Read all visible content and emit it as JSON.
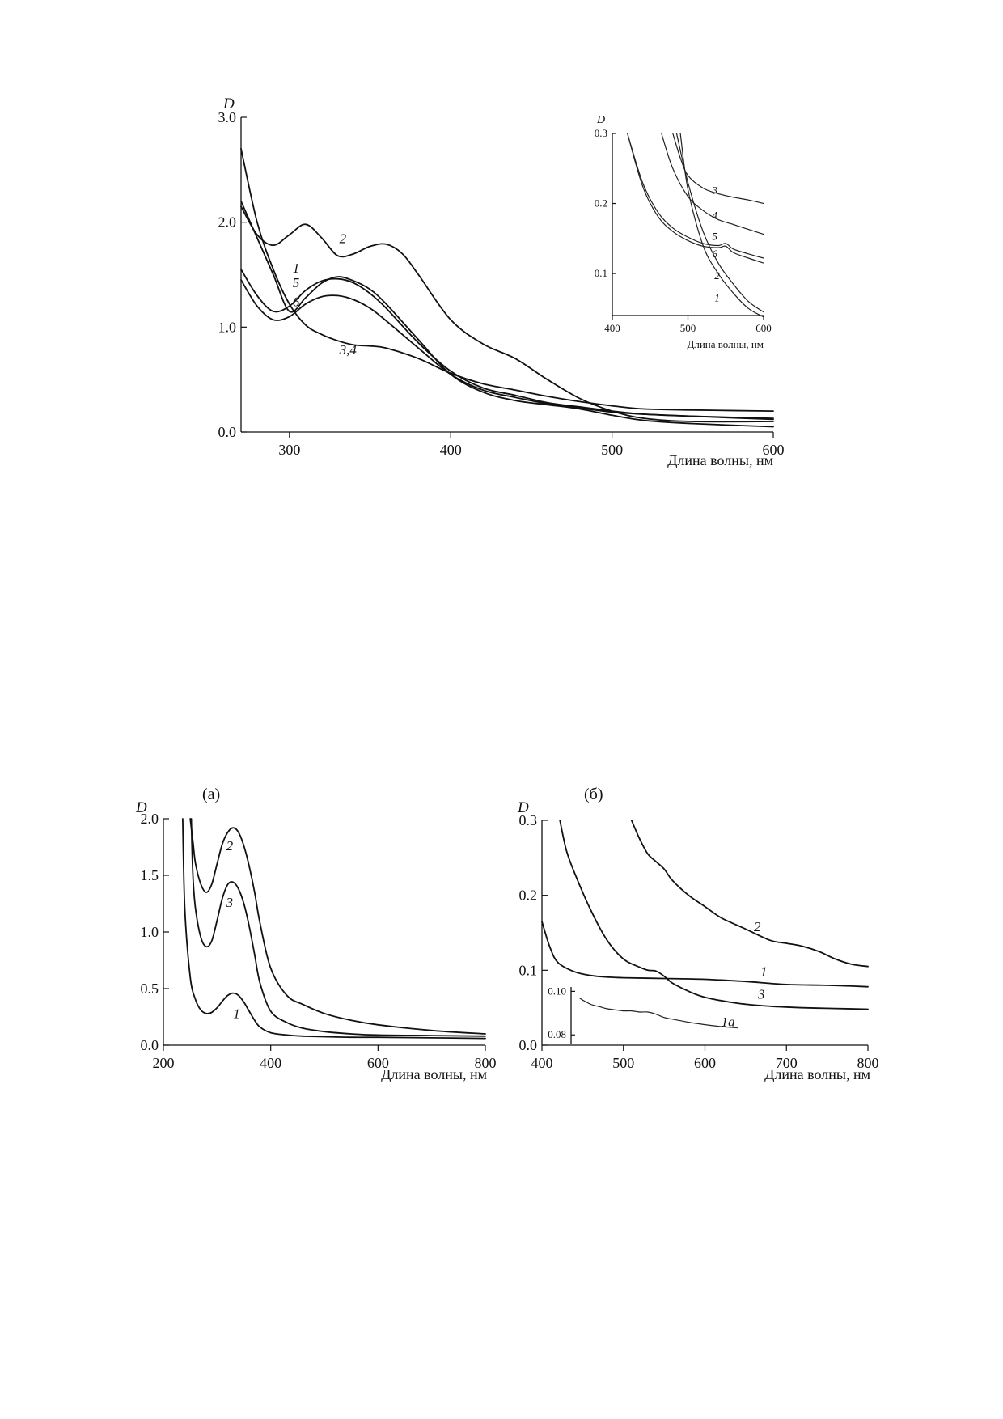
{
  "chart_data": [
    {
      "id": "top-main",
      "type": "line",
      "title": "",
      "xlabel": "Длина волны, нм",
      "ylabel": "D",
      "xlim": [
        270,
        600
      ],
      "ylim": [
        0,
        3.0
      ],
      "xticks": [
        300,
        400,
        500,
        600
      ],
      "yticks": [
        0.0,
        1.0,
        2.0,
        3.0
      ],
      "ytick_labels": [
        "0.0",
        "1.0",
        "2.0",
        "3.0"
      ],
      "grid": false,
      "series": [
        {
          "label": "1",
          "label_at": [
            302,
            1.52
          ],
          "x": [
            270,
            280,
            290,
            300,
            310,
            320,
            330,
            340,
            350,
            360,
            380,
            400,
            420,
            440,
            460,
            480,
            500,
            520,
            550,
            600
          ],
          "y": [
            2.2,
            1.85,
            1.5,
            1.15,
            1.28,
            1.42,
            1.48,
            1.44,
            1.36,
            1.22,
            0.88,
            0.55,
            0.38,
            0.3,
            0.26,
            0.22,
            0.16,
            0.11,
            0.08,
            0.05
          ]
        },
        {
          "label": "2",
          "label_at": [
            331,
            1.8
          ],
          "x": [
            270,
            280,
            290,
            300,
            310,
            320,
            330,
            340,
            350,
            360,
            370,
            380,
            400,
            420,
            440,
            460,
            480,
            500,
            520,
            550,
            600
          ],
          "y": [
            2.15,
            1.88,
            1.78,
            1.88,
            1.98,
            1.85,
            1.68,
            1.7,
            1.77,
            1.79,
            1.7,
            1.5,
            1.07,
            0.84,
            0.7,
            0.5,
            0.32,
            0.2,
            0.13,
            0.1,
            0.1
          ]
        },
        {
          "label": "5",
          "label_at": [
            302,
            1.38
          ],
          "x": [
            270,
            280,
            290,
            300,
            310,
            320,
            330,
            340,
            350,
            360,
            380,
            400,
            420,
            440,
            460,
            480,
            500,
            520,
            550,
            600
          ],
          "y": [
            1.55,
            1.3,
            1.15,
            1.2,
            1.35,
            1.44,
            1.46,
            1.42,
            1.32,
            1.18,
            0.85,
            0.58,
            0.42,
            0.35,
            0.28,
            0.24,
            0.2,
            0.17,
            0.15,
            0.13
          ]
        },
        {
          "label": "6",
          "label_at": [
            302,
            1.2
          ],
          "x": [
            270,
            280,
            290,
            300,
            310,
            320,
            330,
            340,
            350,
            360,
            380,
            400,
            420,
            440,
            460,
            480,
            500,
            520,
            550,
            600
          ],
          "y": [
            1.45,
            1.2,
            1.07,
            1.1,
            1.22,
            1.29,
            1.3,
            1.26,
            1.18,
            1.06,
            0.8,
            0.55,
            0.4,
            0.33,
            0.27,
            0.23,
            0.19,
            0.17,
            0.15,
            0.12
          ]
        },
        {
          "label": "3,4",
          "label_at": [
            331,
            0.74
          ],
          "x": [
            270,
            280,
            290,
            300,
            310,
            320,
            330,
            340,
            350,
            360,
            380,
            400,
            420,
            440,
            460,
            480,
            500,
            520,
            550,
            600
          ],
          "y": [
            2.7,
            2.0,
            1.55,
            1.22,
            1.02,
            0.93,
            0.87,
            0.83,
            0.82,
            0.8,
            0.7,
            0.56,
            0.46,
            0.4,
            0.34,
            0.29,
            0.25,
            0.22,
            0.21,
            0.2
          ]
        }
      ],
      "inset": {
        "xlabel": "Длина волны, нм",
        "ylabel": "D",
        "xlim": [
          400,
          600
        ],
        "ylim": [
          0.04,
          0.3
        ],
        "xticks": [
          400,
          500,
          600
        ],
        "yticks": [
          0.1,
          0.2,
          0.3
        ],
        "ytick_labels": [
          "0.1",
          "0.2",
          "0.3"
        ],
        "series": [
          {
            "label": "1",
            "label_at": [
              535,
              0.06
            ],
            "x": [
              490,
              500,
              520,
              540,
              560,
              580,
              600
            ],
            "y": [
              0.3,
              0.22,
              0.14,
              0.1,
              0.072,
              0.05,
              0.038
            ]
          },
          {
            "label": "2",
            "label_at": [
              535,
              0.092
            ],
            "x": [
              485,
              500,
              520,
              540,
              560,
              580,
              600
            ],
            "y": [
              0.3,
              0.23,
              0.16,
              0.115,
              0.085,
              0.06,
              0.045
            ]
          },
          {
            "label": "3",
            "label_at": [
              532,
              0.214
            ],
            "x": [
              480,
              490,
              500,
              520,
              540,
              560,
              580,
              600
            ],
            "y": [
              0.3,
              0.265,
              0.24,
              0.222,
              0.214,
              0.209,
              0.205,
              0.2
            ]
          },
          {
            "label": "4",
            "label_at": [
              532,
              0.178
            ],
            "x": [
              465,
              480,
              500,
              520,
              540,
              560,
              580,
              600
            ],
            "y": [
              0.3,
              0.25,
              0.21,
              0.19,
              0.177,
              0.17,
              0.163,
              0.156
            ]
          },
          {
            "label": "5",
            "label_at": [
              532,
              0.148
            ],
            "x": [
              420,
              440,
              460,
              480,
              500,
              520,
              540,
              550,
              560,
              580,
              600
            ],
            "y": [
              0.3,
              0.23,
              0.188,
              0.165,
              0.152,
              0.143,
              0.14,
              0.143,
              0.135,
              0.128,
              0.122
            ]
          },
          {
            "label": "6",
            "label_at": [
              532,
              0.123
            ],
            "x": [
              420,
              440,
              460,
              480,
              500,
              520,
              540,
              550,
              560,
              580,
              600
            ],
            "y": [
              0.3,
              0.225,
              0.182,
              0.16,
              0.147,
              0.139,
              0.137,
              0.139,
              0.13,
              0.122,
              0.115
            ]
          }
        ]
      }
    },
    {
      "id": "bottom-a",
      "type": "line",
      "panel_label": "(а)",
      "title": "",
      "xlabel": "Длина волны, нм",
      "ylabel": "D",
      "xlim": [
        200,
        800
      ],
      "ylim": [
        0,
        2.0
      ],
      "xticks": [
        200,
        400,
        600,
        800
      ],
      "yticks": [
        0.0,
        0.5,
        1.0,
        1.5,
        2.0
      ],
      "ytick_labels": [
        "0.0",
        "0.5",
        "1.0",
        "1.5",
        "2.0"
      ],
      "grid": false,
      "series": [
        {
          "label": "1",
          "label_at": [
            330,
            0.24
          ],
          "x": [
            236,
            240,
            250,
            260,
            270,
            280,
            290,
            300,
            310,
            320,
            330,
            340,
            350,
            360,
            370,
            380,
            400,
            430,
            460,
            500,
            550,
            600,
            700,
            800
          ],
          "y": [
            2.0,
            1.2,
            0.6,
            0.4,
            0.31,
            0.28,
            0.29,
            0.33,
            0.39,
            0.44,
            0.46,
            0.44,
            0.38,
            0.3,
            0.22,
            0.16,
            0.11,
            0.09,
            0.08,
            0.075,
            0.07,
            0.07,
            0.065,
            0.06
          ]
        },
        {
          "label": "2",
          "label_at": [
            317,
            1.72
          ],
          "x": [
            250,
            255,
            260,
            270,
            280,
            290,
            300,
            310,
            320,
            330,
            340,
            350,
            360,
            370,
            380,
            400,
            430,
            460,
            500,
            550,
            600,
            700,
            800
          ],
          "y": [
            2.0,
            1.8,
            1.6,
            1.42,
            1.35,
            1.42,
            1.6,
            1.78,
            1.88,
            1.92,
            1.88,
            1.76,
            1.58,
            1.35,
            1.08,
            0.68,
            0.44,
            0.36,
            0.28,
            0.22,
            0.18,
            0.13,
            0.1
          ]
        },
        {
          "label": "3",
          "label_at": [
            317,
            1.22
          ],
          "x": [
            252,
            255,
            260,
            270,
            280,
            290,
            300,
            310,
            320,
            330,
            340,
            350,
            360,
            370,
            380,
            400,
            430,
            460,
            500,
            550,
            600,
            700,
            800
          ],
          "y": [
            2.0,
            1.5,
            1.2,
            0.95,
            0.87,
            0.92,
            1.1,
            1.3,
            1.42,
            1.44,
            1.38,
            1.25,
            1.05,
            0.8,
            0.55,
            0.3,
            0.2,
            0.15,
            0.12,
            0.1,
            0.09,
            0.085,
            0.08
          ]
        }
      ]
    },
    {
      "id": "bottom-b",
      "type": "line",
      "panel_label": "(б)",
      "title": "",
      "xlabel": "Длина волны, нм",
      "ylabel": "D",
      "xlim": [
        400,
        800
      ],
      "ylim": [
        0,
        0.3
      ],
      "xticks": [
        400,
        500,
        600,
        700,
        800
      ],
      "yticks": [
        0.0,
        0.1,
        0.2,
        0.3
      ],
      "ytick_labels": [
        "0.0",
        "0.1",
        "0.2",
        "0.3"
      ],
      "grid": false,
      "series": [
        {
          "label": "1",
          "label_at": [
            668,
            0.092
          ],
          "x": [
            400,
            410,
            420,
            440,
            460,
            480,
            500,
            550,
            600,
            650,
            700,
            750,
            800
          ],
          "y": [
            0.165,
            0.13,
            0.11,
            0.098,
            0.093,
            0.091,
            0.09,
            0.089,
            0.088,
            0.085,
            0.081,
            0.08,
            0.078
          ]
        },
        {
          "label": "2",
          "label_at": [
            660,
            0.152
          ],
          "x": [
            510,
            520,
            530,
            540,
            550,
            560,
            580,
            600,
            620,
            650,
            680,
            700,
            720,
            740,
            760,
            780,
            800
          ],
          "y": [
            0.3,
            0.275,
            0.255,
            0.245,
            0.235,
            0.22,
            0.2,
            0.185,
            0.17,
            0.155,
            0.14,
            0.136,
            0.132,
            0.125,
            0.115,
            0.108,
            0.105
          ]
        },
        {
          "label": "3",
          "label_at": [
            665,
            0.062
          ],
          "x": [
            422,
            430,
            440,
            460,
            480,
            500,
            520,
            530,
            540,
            550,
            560,
            580,
            600,
            640,
            680,
            720,
            760,
            800
          ],
          "y": [
            0.3,
            0.26,
            0.23,
            0.18,
            0.14,
            0.115,
            0.104,
            0.1,
            0.099,
            0.092,
            0.083,
            0.072,
            0.064,
            0.056,
            0.052,
            0.05,
            0.049,
            0.048
          ]
        }
      ],
      "inset": {
        "ylim": [
          0.076,
          0.102
        ],
        "yticks": [
          0.08,
          0.1
        ],
        "ytick_labels": [
          "0.08",
          "0.10"
        ],
        "series": [
          {
            "label": "1a",
            "label_at": [
              620,
              0.084
            ],
            "x": [
              446,
              450,
              460,
              470,
              480,
              490,
              500,
              510,
              520,
              530,
              540,
              550,
              560,
              570,
              580,
              590,
              600,
              610,
              620,
              630,
              640
            ],
            "y": [
              0.097,
              0.096,
              0.094,
              0.093,
              0.092,
              0.0915,
              0.091,
              0.091,
              0.0905,
              0.0905,
              0.0895,
              0.088,
              0.0872,
              0.0865,
              0.0858,
              0.0852,
              0.0847,
              0.0842,
              0.0838,
              0.0835,
              0.0832
            ]
          }
        ]
      }
    }
  ]
}
